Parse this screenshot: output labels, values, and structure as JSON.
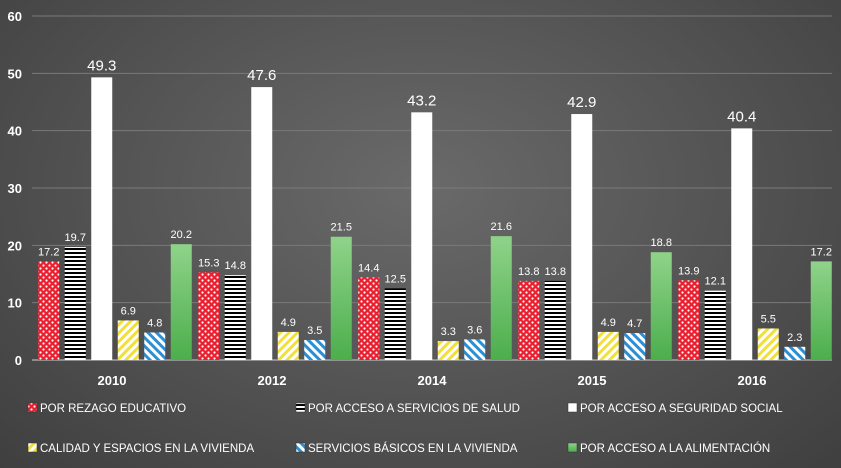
{
  "chart_data": {
    "type": "bar",
    "categories": [
      "2010",
      "2012",
      "2014",
      "2015",
      "2016"
    ],
    "series": [
      {
        "name": "POR REZAGO EDUCATIVO",
        "values": [
          17.2,
          15.3,
          14.4,
          13.8,
          13.9
        ],
        "color": "#e02030",
        "pattern": "red-dots"
      },
      {
        "name": "POR ACCESO A SERVICIOS DE SALUD",
        "values": [
          19.7,
          14.8,
          12.5,
          13.8,
          12.1
        ],
        "color": "#000000",
        "pattern": "horizontal-stripes"
      },
      {
        "name": "POR ACCESO A SEGURIDAD SOCIAL",
        "values": [
          49.3,
          47.6,
          43.2,
          42.9,
          40.4
        ],
        "color": "#ffffff",
        "pattern": "solid"
      },
      {
        "name": "CALIDAD Y ESPACIOS EN LA VIVIENDA",
        "values": [
          6.9,
          4.9,
          3.3,
          4.9,
          5.5
        ],
        "color": "#f5e04a",
        "pattern": "yellow-diagonal"
      },
      {
        "name": "SERVICIOS BÁSICOS EN LA VIVIENDA",
        "values": [
          4.8,
          3.5,
          3.6,
          4.7,
          2.3
        ],
        "color": "#2b8fd6",
        "pattern": "blue-diagonal"
      },
      {
        "name": "POR ACCESO A LA ALIMENTACIÓN",
        "values": [
          20.2,
          21.5,
          21.6,
          18.8,
          17.2
        ],
        "color": "#5cb85c",
        "pattern": "green-gradient"
      }
    ],
    "ylim": [
      0,
      60
    ],
    "yticks": [
      0,
      10,
      20,
      30,
      40,
      50,
      60
    ],
    "title": "",
    "xlabel": "",
    "ylabel": "",
    "grid": true,
    "legend_position": "bottom"
  }
}
